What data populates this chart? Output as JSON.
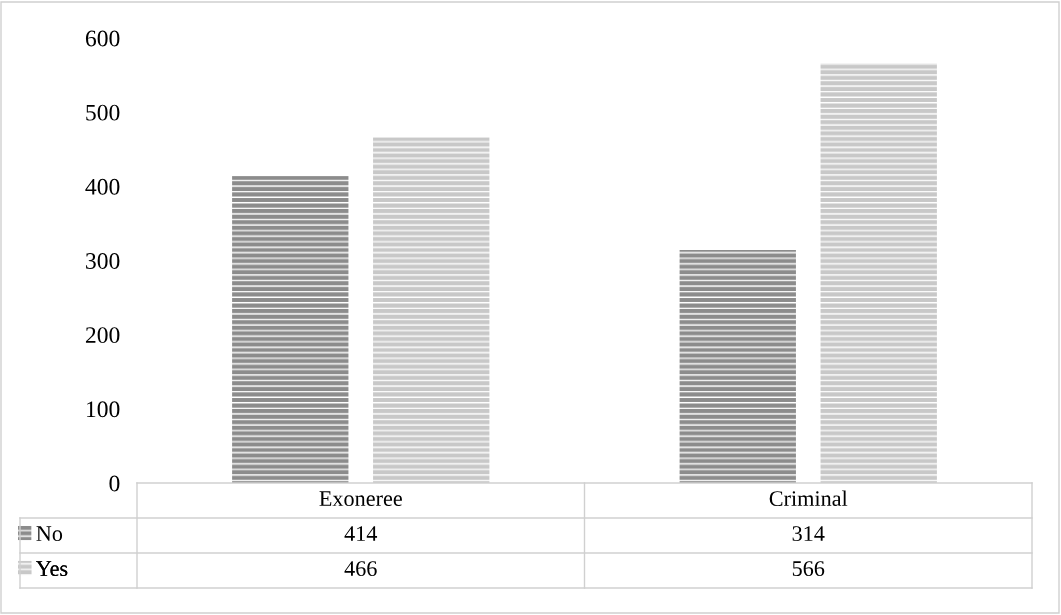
{
  "chart_data": {
    "type": "bar",
    "categories": [
      "Exoneree",
      "Criminal"
    ],
    "series": [
      {
        "name": "No",
        "color": "#8c8c8c",
        "values": [
          414,
          314
        ]
      },
      {
        "name": "Yes",
        "color": "#c8c8c8",
        "values": [
          466,
          566
        ]
      }
    ],
    "ylim": [
      0,
      600
    ],
    "yticks": [
      0,
      100,
      200,
      300,
      400,
      500,
      600
    ],
    "grid": false,
    "legend": "bottom",
    "data_labels": true
  }
}
